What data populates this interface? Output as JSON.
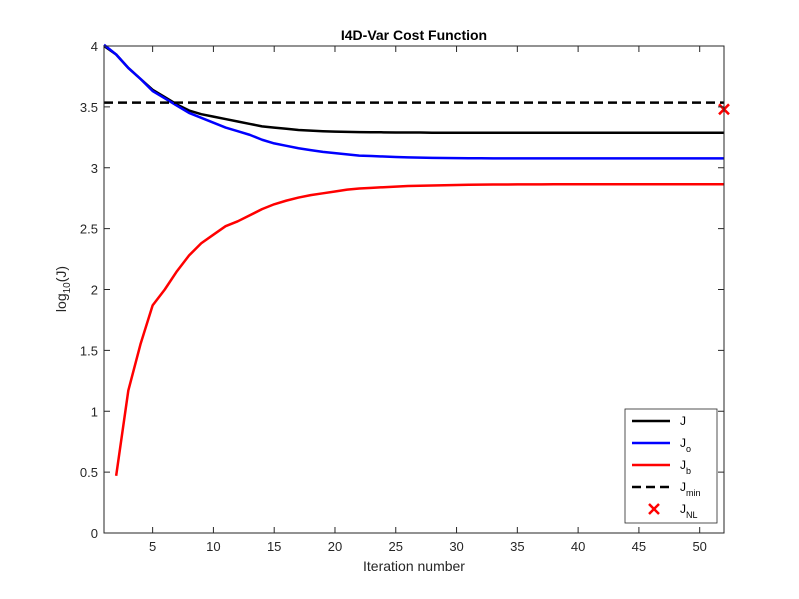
{
  "chart_data": {
    "type": "line",
    "title": "I4D-Var Cost Function",
    "xlabel": "Iteration number",
    "ylabel": "log",
    "ylabel_sub": "10",
    "ylabel_suffix": "(J)",
    "xlim": [
      1,
      52
    ],
    "ylim": [
      0,
      4
    ],
    "xticks": [
      5,
      10,
      15,
      20,
      25,
      30,
      35,
      40,
      45,
      50
    ],
    "yticks": [
      0,
      0.5,
      1,
      1.5,
      2,
      2.5,
      3,
      3.5,
      4
    ],
    "ytick_labels": [
      "0",
      "0.5",
      "1",
      "1.5",
      "2",
      "2.5",
      "3",
      "3.5",
      "4"
    ],
    "grid": false,
    "legend_position": "bottom-right",
    "series": [
      {
        "name": "J",
        "name_sub": "",
        "color": "#000000",
        "style": "solid",
        "x": [
          1,
          2,
          3,
          4,
          5,
          6,
          7,
          8,
          9,
          10,
          11,
          12,
          13,
          14,
          15,
          16,
          17,
          18,
          19,
          20,
          21,
          22,
          23,
          24,
          25,
          26,
          27,
          28,
          29,
          30,
          31,
          32,
          33,
          34,
          35,
          36,
          37,
          38,
          39,
          40,
          41,
          42,
          43,
          44,
          45,
          46,
          47,
          48,
          49,
          50,
          51,
          52
        ],
        "y": [
          4.0,
          3.93,
          3.82,
          3.73,
          3.64,
          3.58,
          3.52,
          3.47,
          3.44,
          3.42,
          3.4,
          3.38,
          3.36,
          3.34,
          3.33,
          3.32,
          3.31,
          3.305,
          3.3,
          3.297,
          3.295,
          3.293,
          3.292,
          3.291,
          3.29,
          3.289,
          3.289,
          3.288,
          3.288,
          3.288,
          3.288,
          3.288,
          3.288,
          3.288,
          3.288,
          3.288,
          3.288,
          3.288,
          3.288,
          3.288,
          3.288,
          3.288,
          3.288,
          3.288,
          3.288,
          3.288,
          3.288,
          3.288,
          3.288,
          3.288,
          3.288,
          3.288
        ]
      },
      {
        "name": "J",
        "name_sub": "o",
        "color": "#0000ff",
        "style": "solid",
        "x": [
          1,
          2,
          3,
          4,
          5,
          6,
          7,
          8,
          9,
          10,
          11,
          12,
          13,
          14,
          15,
          16,
          17,
          18,
          19,
          20,
          21,
          22,
          23,
          24,
          25,
          26,
          27,
          28,
          29,
          30,
          31,
          32,
          33,
          34,
          35,
          36,
          37,
          38,
          39,
          40,
          41,
          42,
          43,
          44,
          45,
          46,
          47,
          48,
          49,
          50,
          51,
          52
        ],
        "y": [
          4.01,
          3.93,
          3.82,
          3.73,
          3.63,
          3.57,
          3.51,
          3.45,
          3.41,
          3.37,
          3.33,
          3.3,
          3.27,
          3.23,
          3.2,
          3.18,
          3.16,
          3.145,
          3.13,
          3.12,
          3.11,
          3.1,
          3.097,
          3.092,
          3.088,
          3.085,
          3.083,
          3.081,
          3.08,
          3.079,
          3.078,
          3.078,
          3.077,
          3.077,
          3.077,
          3.077,
          3.077,
          3.077,
          3.077,
          3.077,
          3.077,
          3.077,
          3.077,
          3.077,
          3.077,
          3.077,
          3.077,
          3.077,
          3.077,
          3.077,
          3.077,
          3.077
        ]
      },
      {
        "name": "J",
        "name_sub": "b",
        "color": "#ff0000",
        "style": "solid",
        "x": [
          2,
          3,
          4,
          5,
          6,
          7,
          8,
          9,
          10,
          11,
          12,
          13,
          14,
          15,
          16,
          17,
          18,
          19,
          20,
          21,
          22,
          23,
          24,
          25,
          26,
          27,
          28,
          29,
          30,
          31,
          32,
          33,
          34,
          35,
          36,
          37,
          38,
          39,
          40,
          41,
          42,
          43,
          44,
          45,
          46,
          47,
          48,
          49,
          50,
          51,
          52
        ],
        "y": [
          0.47,
          1.17,
          1.55,
          1.87,
          2.0,
          2.15,
          2.28,
          2.38,
          2.45,
          2.52,
          2.56,
          2.61,
          2.66,
          2.7,
          2.73,
          2.755,
          2.775,
          2.79,
          2.805,
          2.82,
          2.83,
          2.835,
          2.84,
          2.845,
          2.85,
          2.852,
          2.854,
          2.856,
          2.858,
          2.86,
          2.861,
          2.862,
          2.862,
          2.863,
          2.863,
          2.863,
          2.864,
          2.864,
          2.864,
          2.864,
          2.864,
          2.864,
          2.864,
          2.864,
          2.864,
          2.864,
          2.864,
          2.864,
          2.864,
          2.864,
          2.864
        ]
      },
      {
        "name": "J",
        "name_sub": "min",
        "color": "#000000",
        "style": "dashed",
        "x": [
          1,
          52
        ],
        "y": [
          3.535,
          3.535
        ]
      },
      {
        "name": "J",
        "name_sub": "NL",
        "color": "#ff0000",
        "style": "marker-x",
        "x": [
          52
        ],
        "y": [
          3.48
        ]
      }
    ]
  }
}
